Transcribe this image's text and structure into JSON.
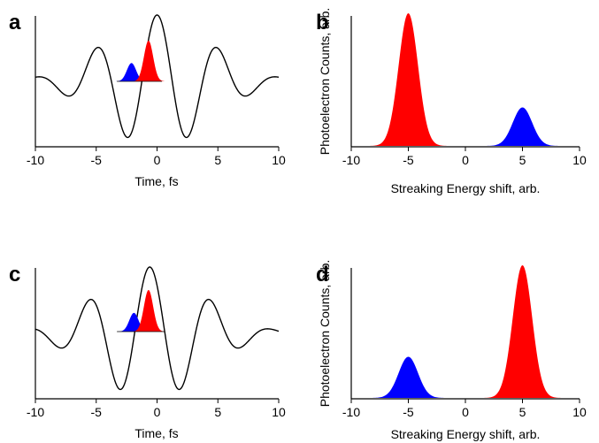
{
  "figure": {
    "panels": [
      "a",
      "b",
      "c",
      "d"
    ]
  },
  "chart_data": [
    {
      "panel": "a",
      "type": "line",
      "xlabel": "Time, fs",
      "ylabel": "",
      "xlim": [
        -10,
        10
      ],
      "xticks": [
        "-10",
        "-5",
        "0",
        "5",
        "10"
      ],
      "waveform": {
        "carrier_period_fs": 5.0,
        "envelope_fwhm_fs": 10.0,
        "peak_time_fs": 0.0,
        "color": "#000000"
      },
      "inset_pulses": [
        {
          "name": "blue pulse",
          "center_fs": -2.1,
          "relative_height": 0.45,
          "color": "#0000ff"
        },
        {
          "name": "red pulse",
          "center_fs": -0.7,
          "relative_height": 1.0,
          "color": "#ff0000"
        }
      ]
    },
    {
      "panel": "b",
      "type": "area",
      "xlabel": "Streaking Energy shift, arb.",
      "ylabel": "Photoelectron Counts, arb.",
      "xlim": [
        -10,
        10
      ],
      "xticks": [
        "-10",
        "-5",
        "0",
        "5",
        "10"
      ],
      "series": [
        {
          "center": -5,
          "amplitude": 1.0,
          "color": "#ff0000"
        },
        {
          "center": 5,
          "amplitude": 0.29,
          "color": "#0000ff"
        }
      ]
    },
    {
      "panel": "c",
      "type": "line",
      "xlabel": "Time, fs",
      "ylabel": "",
      "xlim": [
        -10,
        10
      ],
      "xticks": [
        "-10",
        "-5",
        "0",
        "5",
        "10"
      ],
      "waveform": {
        "carrier_period_fs": 5.0,
        "envelope_fwhm_fs": 10.0,
        "peak_time_fs": -0.6,
        "color": "#000000"
      },
      "inset_pulses": [
        {
          "name": "blue pulse",
          "center_fs": -1.9,
          "relative_height": 0.45,
          "color": "#0000ff"
        },
        {
          "name": "red pulse",
          "center_fs": -0.7,
          "relative_height": 1.0,
          "color": "#ff0000"
        }
      ]
    },
    {
      "panel": "d",
      "type": "area",
      "xlabel": "Streaking Energy shift, arb.",
      "ylabel": "Photoelectron Counts, arb.",
      "xlim": [
        -10,
        10
      ],
      "xticks": [
        "-10",
        "-5",
        "0",
        "5",
        "10"
      ],
      "series": [
        {
          "center": -5,
          "amplitude": 0.31,
          "color": "#0000ff"
        },
        {
          "center": 5,
          "amplitude": 1.0,
          "color": "#ff0000"
        }
      ]
    }
  ]
}
